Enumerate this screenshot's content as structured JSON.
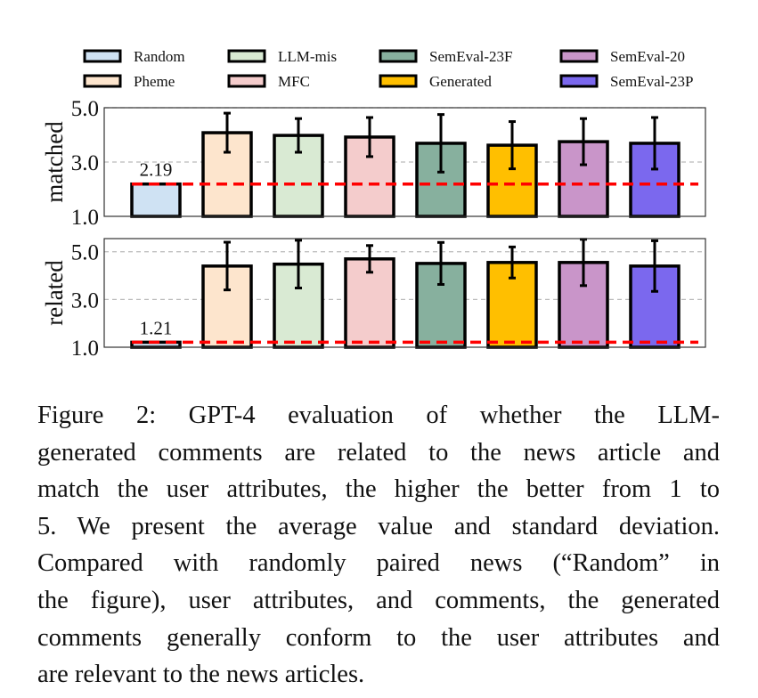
{
  "chart_data": {
    "legend": {
      "placement": "top",
      "columns": 4
    },
    "categories": [
      "Random",
      "Pheme",
      "LLM-mis",
      "MFC",
      "SemEval-23F",
      "Generated",
      "SemEval-20",
      "SemEval-23P"
    ],
    "colors": [
      "#cfe2f3",
      "#fde5cd",
      "#d9ead3",
      "#f4cccc",
      "#87b09e",
      "#ffbf00",
      "#c995c9",
      "#7b68ee"
    ],
    "legend_order": [
      "Random",
      "LLM-mis",
      "SemEval-23F",
      "SemEval-20",
      "Pheme",
      "MFC",
      "Generated",
      "SemEval-23P"
    ],
    "baseline_color": "#ff0000",
    "panels": [
      {
        "type": "bar",
        "ylabel": "matched",
        "ylim": [
          1.0,
          5.0
        ],
        "yticks": [
          "1.0",
          "3.0",
          "5.0"
        ],
        "grid": "horizontal dashed",
        "values": [
          2.19,
          4.08,
          3.98,
          3.92,
          3.69,
          3.62,
          3.75,
          3.69
        ],
        "errors": [
          0,
          0.72,
          0.62,
          0.72,
          1.06,
          0.87,
          0.85,
          0.95
        ],
        "annotation": "2.19",
        "baseline": 2.19
      },
      {
        "type": "bar",
        "ylabel": "related",
        "ylim": [
          1.0,
          5.55
        ],
        "yticks": [
          "1.0",
          "3.0",
          "5.0"
        ],
        "grid": "horizontal dashed",
        "values": [
          1.21,
          4.4,
          4.48,
          4.7,
          4.51,
          4.55,
          4.55,
          4.4
        ],
        "errors": [
          0,
          1.0,
          1.0,
          0.56,
          0.88,
          0.65,
          0.97,
          1.06
        ],
        "annotation": "1.21",
        "baseline": 1.21
      }
    ]
  },
  "caption": {
    "lines": [
      "Figure 2:  GPT-4 evaluation of whether the LLM-",
      "generated comments are related to the news article and",
      "match the user attributes, the higher the better from 1 to",
      "5. We present the average value and standard deviation.",
      "Compared with randomly paired news (“Random” in",
      "the figure), user attributes, and comments, the generated",
      "comments generally conform to the user attributes and",
      "are relevant to the news articles."
    ]
  }
}
